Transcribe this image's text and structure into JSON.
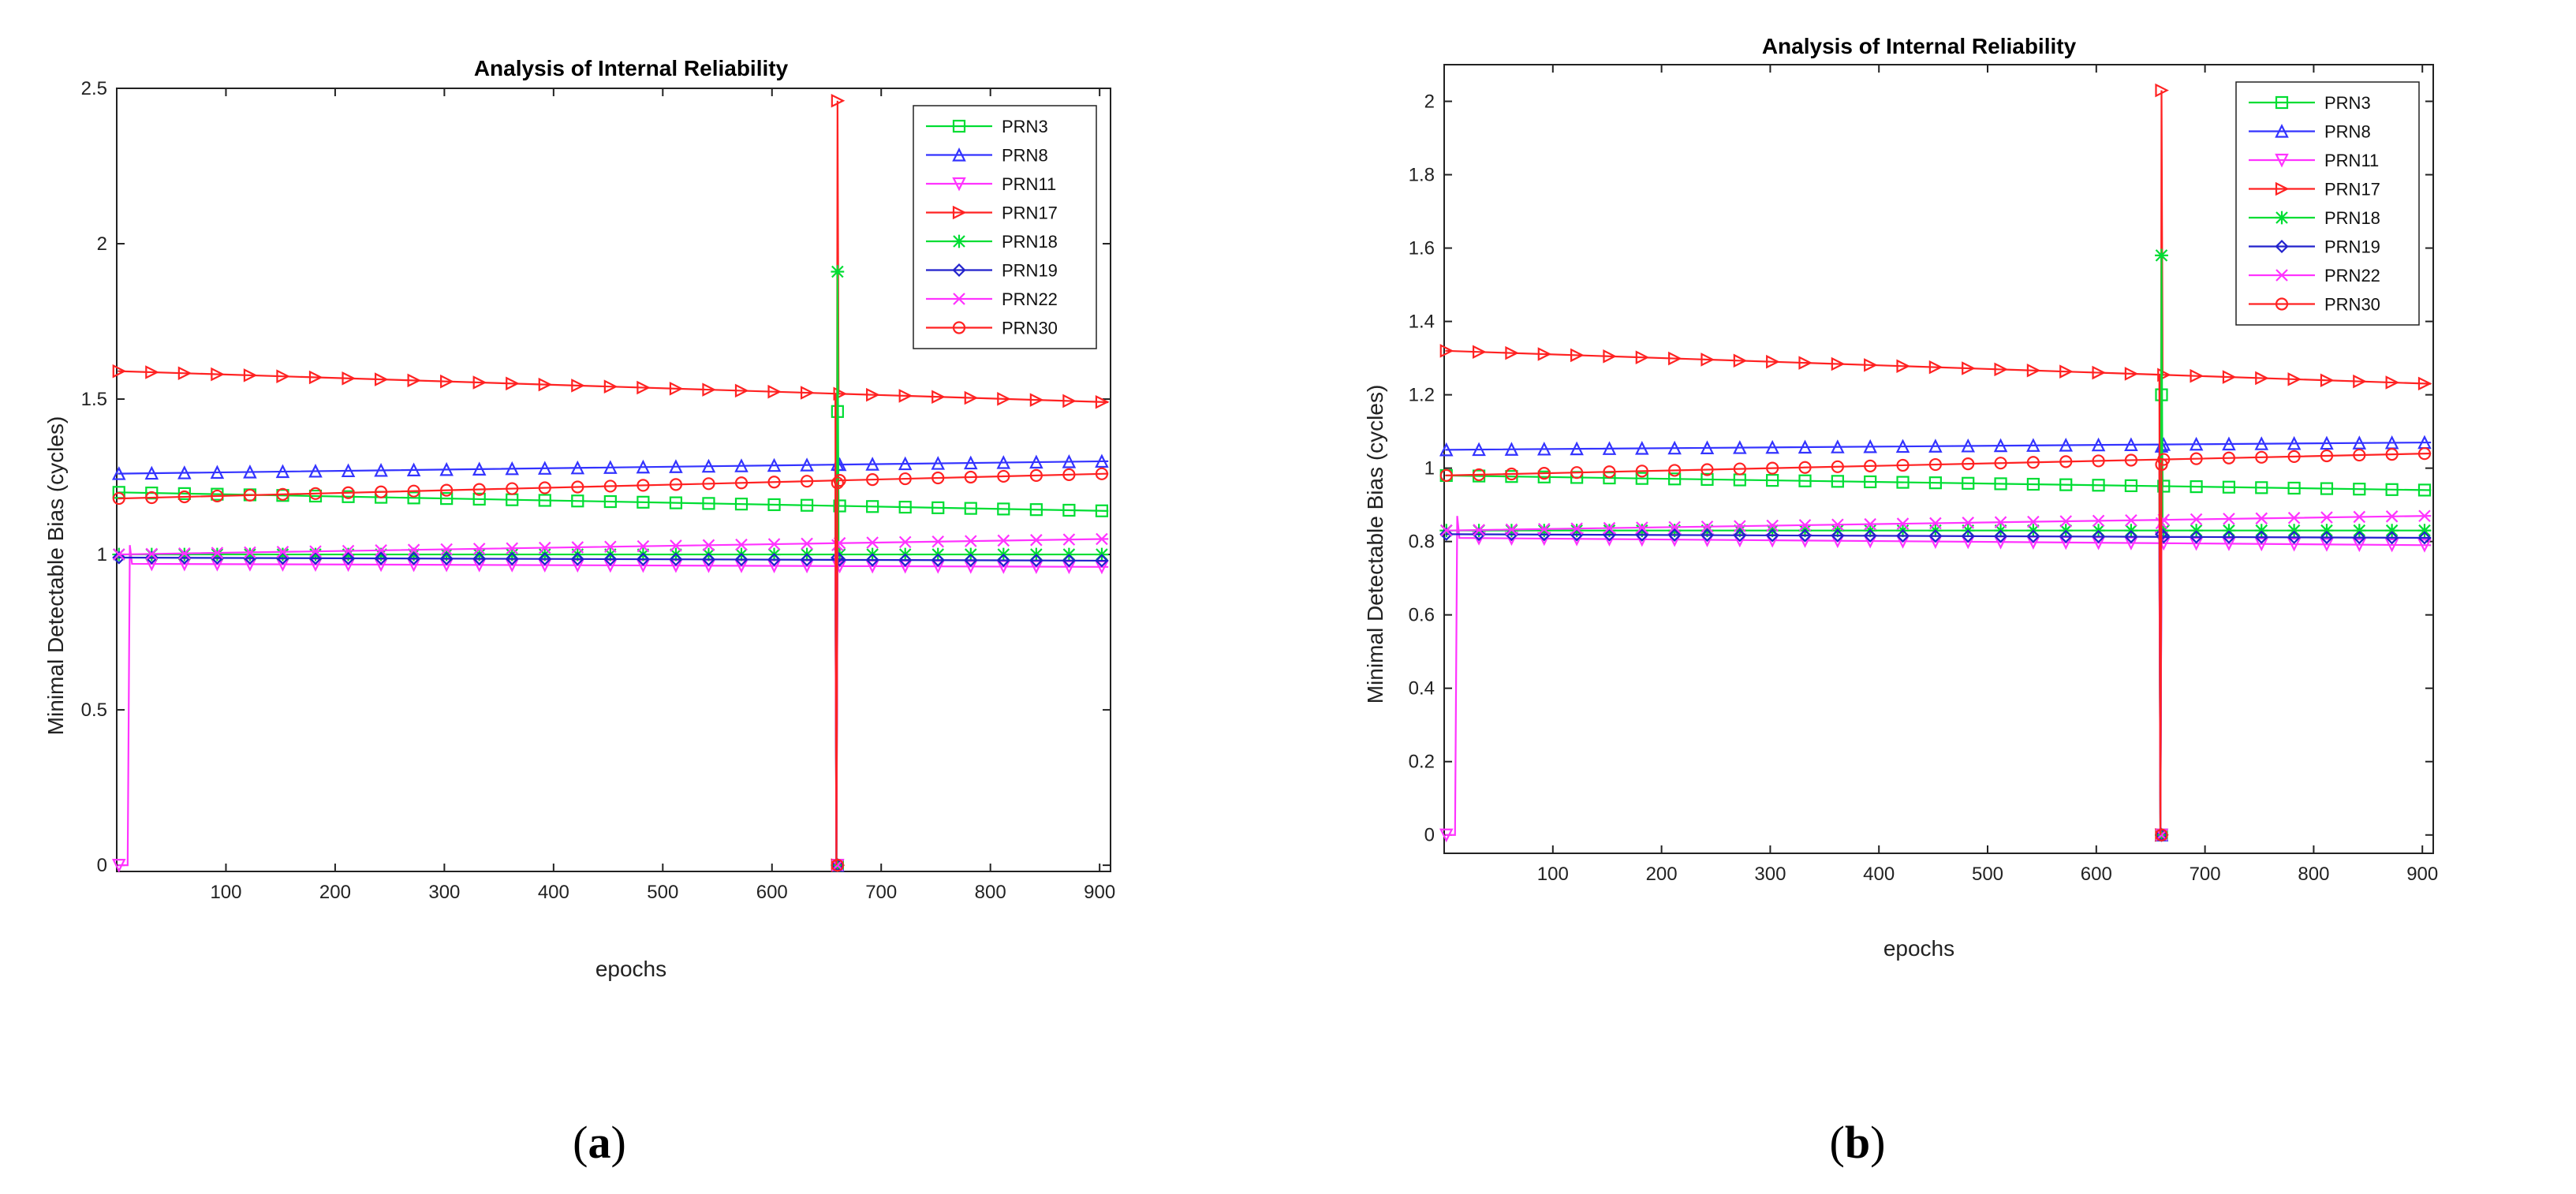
{
  "chart_data": [
    {
      "type": "line",
      "caption": "a",
      "title": "Analysis of Internal Reliability",
      "xlabel": "epochs",
      "ylabel": "Minimal Detectable Bias (cycles)",
      "xlim": [
        0,
        910
      ],
      "ylim": [
        -0.02,
        2.5
      ],
      "xticks": [
        100,
        200,
        300,
        400,
        500,
        600,
        700,
        800,
        900
      ],
      "xtick_labels": [
        "100",
        "200",
        "300",
        "400",
        "500",
        "600",
        "700",
        "800",
        "900"
      ],
      "yticks": [
        0,
        0.5,
        1,
        1.5,
        2,
        2.5
      ],
      "ytick_labels": [
        "0",
        "0.5",
        "1",
        "1.5",
        "2",
        "2.5"
      ],
      "grid": false,
      "legend_position": "top-right",
      "spike_epoch": 660,
      "series": [
        {
          "name": "PRN3",
          "color": "#00dd33",
          "marker": "square",
          "start": 1.2,
          "end": 1.14,
          "spike_peak": 1.46,
          "spike_low": 0.0,
          "early_drop": false
        },
        {
          "name": "PRN8",
          "color": "#3333ff",
          "marker": "triangle-up",
          "start": 1.26,
          "end": 1.3,
          "spike_peak": 1.29,
          "spike_low": 0.0,
          "early_drop": false
        },
        {
          "name": "PRN11",
          "color": "#ff33ff",
          "marker": "triangle-down",
          "start": 0.97,
          "end": 0.96,
          "spike_peak": 0.97,
          "spike_low": 0.0,
          "early_drop": true
        },
        {
          "name": "PRN17",
          "color": "#ff2222",
          "marker": "triangle-right",
          "start": 1.59,
          "end": 1.49,
          "spike_peak": 2.46,
          "spike_low": 0.0,
          "early_drop": false
        },
        {
          "name": "PRN18",
          "color": "#00dd33",
          "marker": "star",
          "start": 1.0,
          "end": 1.0,
          "spike_peak": 1.91,
          "spike_low": 0.0,
          "early_drop": false
        },
        {
          "name": "PRN19",
          "color": "#2222cc",
          "marker": "diamond",
          "start": 0.99,
          "end": 0.98,
          "spike_peak": 0.99,
          "spike_low": 0.0,
          "early_drop": false
        },
        {
          "name": "PRN22",
          "color": "#ff33ff",
          "marker": "x",
          "start": 1.0,
          "end": 1.05,
          "spike_peak": 1.03,
          "spike_low": 0.0,
          "early_drop": false
        },
        {
          "name": "PRN30",
          "color": "#ff2222",
          "marker": "circle",
          "start": 1.18,
          "end": 1.26,
          "spike_peak": 1.23,
          "spike_low": 0.0,
          "early_drop": false
        }
      ]
    },
    {
      "type": "line",
      "caption": "b",
      "title": "Analysis of Internal Reliability",
      "xlabel": "epochs",
      "ylabel": "Minimal Detectable Bias (cycles)",
      "xlim": [
        0,
        910
      ],
      "ylim": [
        -0.05,
        2.1
      ],
      "xticks": [
        100,
        200,
        300,
        400,
        500,
        600,
        700,
        800,
        900
      ],
      "xtick_labels": [
        "100",
        "200",
        "300",
        "400",
        "500",
        "600",
        "700",
        "800",
        "900"
      ],
      "yticks": [
        0,
        0.2,
        0.4,
        0.6,
        0.8,
        1,
        1.2,
        1.4,
        1.6,
        1.8,
        2
      ],
      "ytick_labels": [
        "0",
        "0.2",
        "0.4",
        "0.6",
        "0.8",
        "1",
        "1.2",
        "1.4",
        "1.6",
        "1.8",
        "2"
      ],
      "grid": false,
      "legend_position": "top-right",
      "spike_epoch": 660,
      "series": [
        {
          "name": "PRN3",
          "color": "#00dd33",
          "marker": "square",
          "start": 0.98,
          "end": 0.94,
          "spike_peak": 1.2,
          "spike_low": 0.0,
          "early_drop": false
        },
        {
          "name": "PRN8",
          "color": "#3333ff",
          "marker": "triangle-up",
          "start": 1.05,
          "end": 1.07,
          "spike_peak": 1.06,
          "spike_low": 0.0,
          "early_drop": false
        },
        {
          "name": "PRN11",
          "color": "#ff33ff",
          "marker": "triangle-down",
          "start": 0.81,
          "end": 0.79,
          "spike_peak": 0.81,
          "spike_low": 0.0,
          "early_drop": true
        },
        {
          "name": "PRN17",
          "color": "#ff2222",
          "marker": "triangle-right",
          "start": 1.32,
          "end": 1.23,
          "spike_peak": 2.03,
          "spike_low": 0.0,
          "early_drop": false
        },
        {
          "name": "PRN18",
          "color": "#00dd33",
          "marker": "star",
          "start": 0.83,
          "end": 0.83,
          "spike_peak": 1.58,
          "spike_low": 0.0,
          "early_drop": false
        },
        {
          "name": "PRN19",
          "color": "#2222cc",
          "marker": "diamond",
          "start": 0.82,
          "end": 0.81,
          "spike_peak": 0.82,
          "spike_low": 0.0,
          "early_drop": false
        },
        {
          "name": "PRN22",
          "color": "#ff33ff",
          "marker": "x",
          "start": 0.83,
          "end": 0.87,
          "spike_peak": 0.85,
          "spike_low": 0.0,
          "early_drop": false
        },
        {
          "name": "PRN30",
          "color": "#ff2222",
          "marker": "circle",
          "start": 0.98,
          "end": 1.04,
          "spike_peak": 1.01,
          "spike_low": 0.0,
          "early_drop": false
        }
      ]
    }
  ]
}
